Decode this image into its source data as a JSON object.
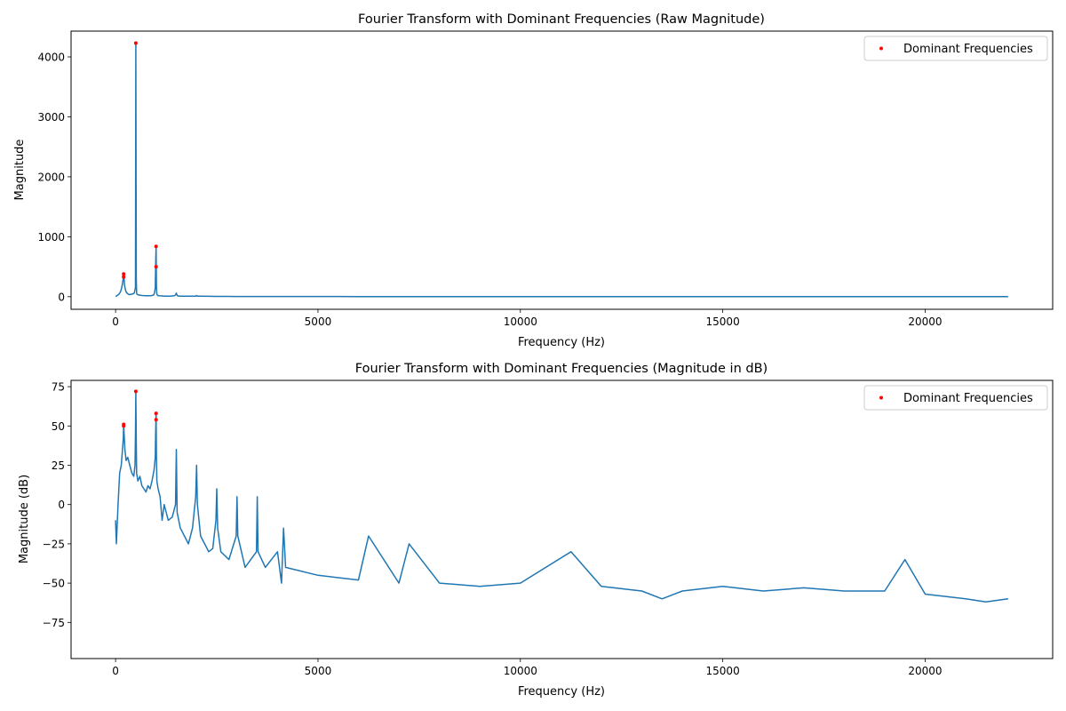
{
  "colors": {
    "line": "#1f77b4",
    "marker": "#ff0000",
    "axes": "#000000",
    "background": "#ffffff"
  },
  "chart_data": [
    {
      "type": "line",
      "title": "Fourier Transform with Dominant Frequencies (Raw Magnitude)",
      "xlabel": "Frequency (Hz)",
      "ylabel": "Magnitude",
      "xlim": [
        -1100,
        23150
      ],
      "ylim": [
        -210,
        4430
      ],
      "xticks": [
        0,
        5000,
        10000,
        15000,
        20000
      ],
      "xtick_labels": [
        "0",
        "5000",
        "10000",
        "15000",
        "20000"
      ],
      "yticks": [
        0,
        1000,
        2000,
        3000,
        4000
      ],
      "ytick_labels": [
        "0",
        "1000",
        "2000",
        "3000",
        "4000"
      ],
      "grid": false,
      "legend_position": "upper right",
      "series": [
        {
          "kind": "line",
          "x": [
            0,
            20,
            40,
            60,
            80,
            100,
            120,
            140,
            160,
            180,
            190,
            200,
            210,
            220,
            240,
            260,
            280,
            300,
            320,
            350,
            380,
            420,
            460,
            490,
            500,
            510,
            520,
            530,
            560,
            600,
            650,
            700,
            750,
            800,
            850,
            900,
            940,
            960,
            980,
            990,
            1000,
            1010,
            1020,
            1040,
            1080,
            1150,
            1250,
            1350,
            1450,
            1480,
            1500,
            1520,
            1560,
            1700,
            1900,
            1980,
            2000,
            2020,
            2100,
            2500,
            3000,
            4000,
            6000,
            8000,
            10000,
            12000,
            14000,
            16000,
            18000,
            20000,
            22050
          ],
          "y": [
            5,
            10,
            20,
            30,
            40,
            60,
            80,
            120,
            180,
            260,
            320,
            380,
            300,
            200,
            120,
            80,
            60,
            50,
            40,
            35,
            40,
            45,
            60,
            150,
            4230,
            300,
            60,
            40,
            30,
            25,
            20,
            18,
            15,
            15,
            15,
            20,
            30,
            60,
            150,
            500,
            840,
            150,
            40,
            20,
            15,
            12,
            10,
            10,
            15,
            30,
            60,
            20,
            10,
            8,
            8,
            10,
            20,
            10,
            8,
            5,
            4,
            3,
            2,
            2,
            1,
            1,
            1,
            1,
            1,
            1,
            1
          ]
        },
        {
          "kind": "points",
          "name": "Dominant Frequencies",
          "x": [
            200,
            200,
            500,
            1000,
            1000
          ],
          "y": [
            380,
            330,
            4230,
            840,
            500
          ]
        }
      ]
    },
    {
      "type": "line",
      "title": "Fourier Transform with Dominant Frequencies (Magnitude in dB)",
      "xlabel": "Frequency (Hz)",
      "ylabel": "Magnitude (dB)",
      "xlim": [
        -1100,
        23150
      ],
      "ylim": [
        -98,
        79
      ],
      "xticks": [
        0,
        5000,
        10000,
        15000,
        20000
      ],
      "xtick_labels": [
        "0",
        "5000",
        "10000",
        "15000",
        "20000"
      ],
      "yticks": [
        -75,
        -50,
        -25,
        0,
        25,
        50,
        75
      ],
      "ytick_labels": [
        "−75",
        "−50",
        "−25",
        "0",
        "25",
        "50",
        "75"
      ],
      "grid": false,
      "legend_position": "upper right",
      "series": [
        {
          "kind": "line",
          "x": [
            0,
            20,
            60,
            100,
            140,
            170,
            190,
            200,
            210,
            230,
            260,
            300,
            350,
            400,
            450,
            480,
            490,
            500,
            510,
            520,
            550,
            600,
            650,
            700,
            750,
            800,
            850,
            900,
            950,
            980,
            990,
            1000,
            1010,
            1020,
            1050,
            1100,
            1150,
            1200,
            1300,
            1400,
            1480,
            1500,
            1520,
            1600,
            1700,
            1800,
            1900,
            1980,
            2000,
            2020,
            2100,
            2200,
            2300,
            2400,
            2480,
            2500,
            2520,
            2600,
            2800,
            2980,
            3000,
            3020,
            3200,
            3480,
            3500,
            3520,
            3700,
            4000,
            4100,
            4150,
            4200,
            5000,
            6000,
            6250,
            7000,
            7250,
            8000,
            9000,
            10000,
            11250,
            12000,
            13000,
            13500,
            14000,
            15000,
            16000,
            17000,
            18000,
            19000,
            19500,
            20000,
            21000,
            21500,
            22050
          ],
          "y": [
            -10,
            -25,
            0,
            20,
            25,
            35,
            42,
            51,
            45,
            35,
            28,
            30,
            25,
            20,
            18,
            25,
            45,
            72,
            40,
            20,
            15,
            18,
            12,
            10,
            8,
            12,
            10,
            15,
            22,
            30,
            45,
            58,
            30,
            15,
            10,
            5,
            -10,
            0,
            -10,
            -8,
            0,
            35,
            -5,
            -15,
            -20,
            -25,
            -15,
            5,
            25,
            0,
            -20,
            -25,
            -30,
            -28,
            -10,
            10,
            -15,
            -30,
            -35,
            -20,
            5,
            -20,
            -40,
            -30,
            5,
            -30,
            -40,
            -30,
            -50,
            -15,
            -40,
            -45,
            -48,
            -20,
            -50,
            -25,
            -50,
            -52,
            -50,
            -30,
            -52,
            -55,
            -60,
            -55,
            -52,
            -55,
            -53,
            -55,
            -55,
            -35,
            -57,
            -60,
            -62,
            -60
          ]
        },
        {
          "kind": "points",
          "name": "Dominant Frequencies",
          "x": [
            200,
            200,
            500,
            1000,
            1000
          ],
          "y": [
            51,
            50,
            72,
            58,
            54
          ]
        }
      ]
    }
  ]
}
